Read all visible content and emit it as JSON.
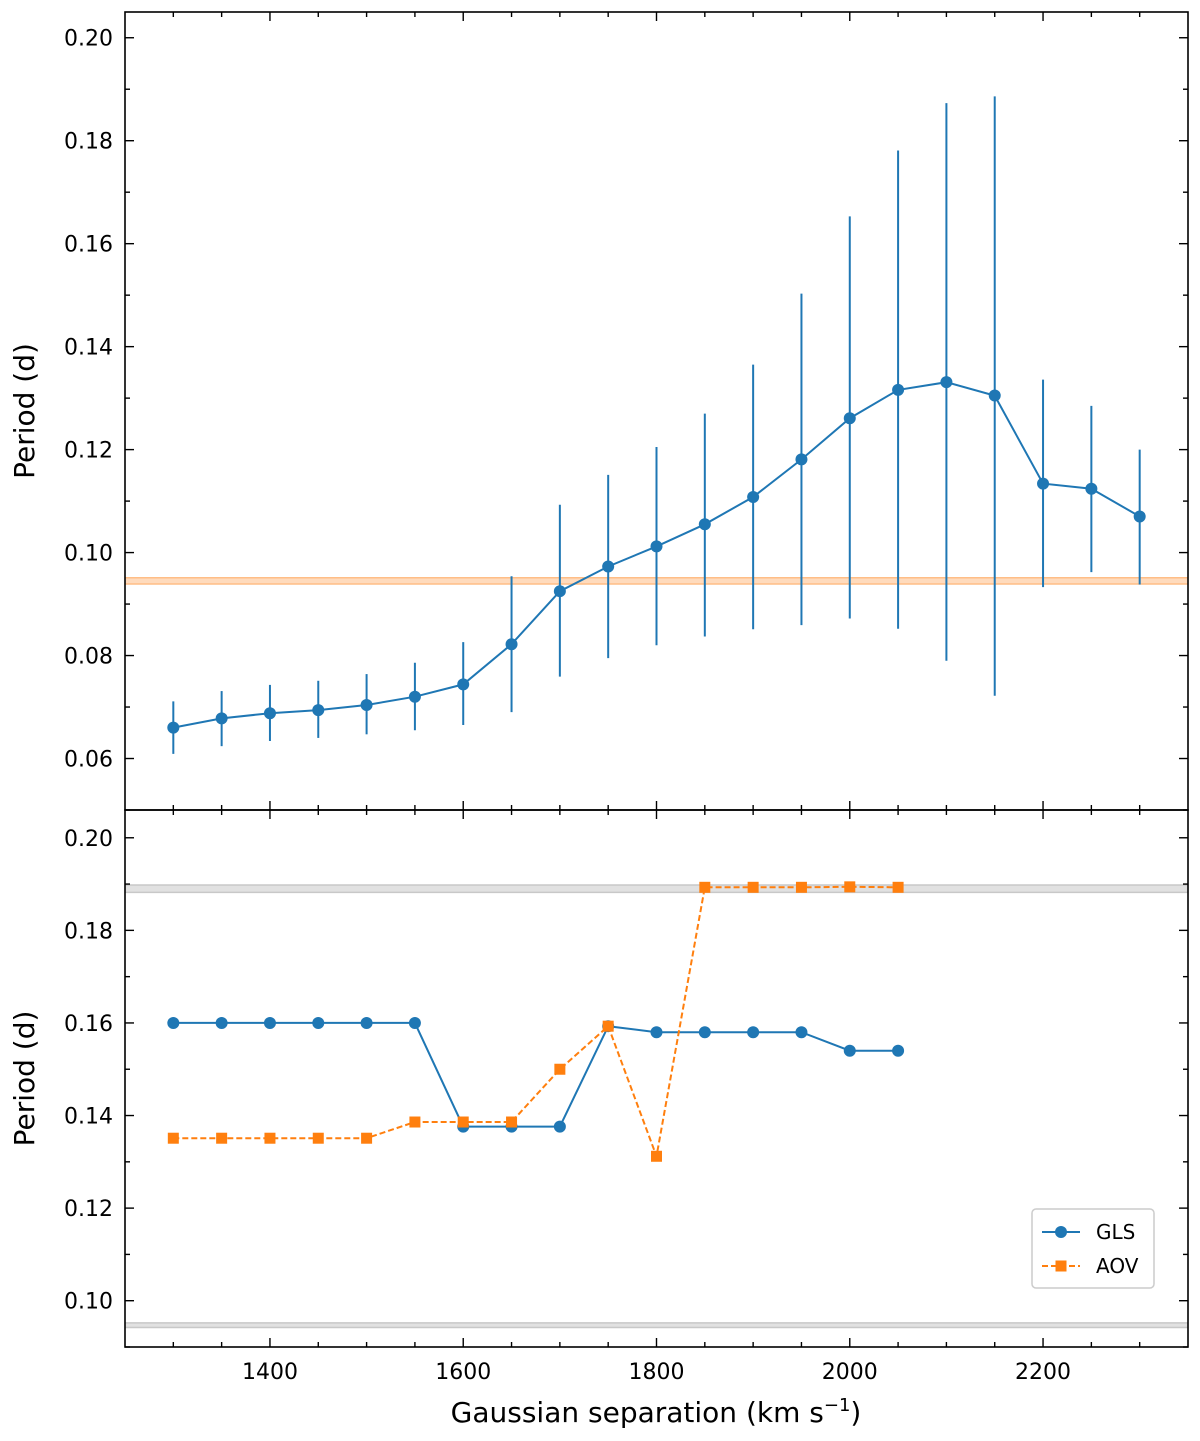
{
  "chart_data": [
    {
      "type": "line",
      "panel": "top",
      "xlabel": "Gaussian separation (km s",
      "xlabel_sup": "−1",
      "xlabel_end": ")",
      "ylabel": "Period (d)",
      "xlim": [
        1250,
        2350
      ],
      "ylim": [
        0.05,
        0.205
      ],
      "xticks": [
        1400,
        1600,
        1800,
        2000,
        2200
      ],
      "xtick_labels": [
        "1400",
        "1600",
        "1800",
        "2000",
        "2200"
      ],
      "yticks": [
        0.06,
        0.08,
        0.1,
        0.12,
        0.14,
        0.16,
        0.18,
        0.2
      ],
      "ytick_labels": [
        "0.06",
        "0.08",
        "0.10",
        "0.12",
        "0.14",
        "0.16",
        "0.18",
        "0.20"
      ],
      "hband": {
        "y": 0.0945,
        "halfwidth": 0.0006,
        "color": "#ffbe86"
      },
      "series": [
        {
          "name": "GLS",
          "color": "#1f77b4",
          "marker": "circle",
          "x": [
            1300,
            1350,
            1400,
            1450,
            1500,
            1550,
            1600,
            1650,
            1700,
            1750,
            1800,
            1850,
            1900,
            1950,
            2000,
            2050,
            2100,
            2150,
            2200,
            2250,
            2300
          ],
          "y": [
            0.066,
            0.0678,
            0.0688,
            0.0694,
            0.0704,
            0.072,
            0.0744,
            0.0822,
            0.0925,
            0.0973,
            0.1012,
            0.1055,
            0.1108,
            0.1181,
            0.1261,
            0.1316,
            0.1331,
            0.1305,
            0.1134,
            0.1124,
            0.107
          ],
          "err_low": [
            0.0609,
            0.0624,
            0.0634,
            0.064,
            0.0647,
            0.0655,
            0.0665,
            0.069,
            0.0759,
            0.0795,
            0.082,
            0.0837,
            0.0851,
            0.0859,
            0.0872,
            0.0852,
            0.079,
            0.0722,
            0.0933,
            0.0962,
            0.0938
          ],
          "err_high": [
            0.0711,
            0.0731,
            0.0743,
            0.0751,
            0.0764,
            0.0786,
            0.0826,
            0.0954,
            0.1093,
            0.1151,
            0.1205,
            0.127,
            0.1365,
            0.1503,
            0.1653,
            0.1781,
            0.1873,
            0.1886,
            0.1336,
            0.1285,
            0.12
          ]
        }
      ]
    },
    {
      "type": "line",
      "panel": "bottom",
      "xlabel": "Gaussian separation (km s",
      "xlabel_sup": "−1",
      "xlabel_end": ")",
      "ylabel": "Period (d)",
      "xlim": [
        1250,
        2350
      ],
      "ylim": [
        0.09,
        0.206
      ],
      "xticks": [
        1400,
        1600,
        1800,
        2000,
        2200
      ],
      "xtick_labels": [
        "1400",
        "1600",
        "1800",
        "2000",
        "2200"
      ],
      "yticks": [
        0.1,
        0.12,
        0.14,
        0.16,
        0.18,
        0.2
      ],
      "ytick_labels": [
        "0.10",
        "0.12",
        "0.14",
        "0.16",
        "0.18",
        "0.20"
      ],
      "hbands": [
        {
          "y": 0.189,
          "halfwidth": 0.0008,
          "color": "#c8c8c8"
        },
        {
          "y": 0.0947,
          "halfwidth": 0.0005,
          "color": "#c8c8c8"
        }
      ],
      "series": [
        {
          "name": "GLS",
          "color": "#1f77b4",
          "marker": "circle",
          "linestyle": "solid",
          "x": [
            1300,
            1350,
            1400,
            1450,
            1500,
            1550,
            1600,
            1650,
            1700,
            1750,
            1800,
            1850,
            1900,
            1950,
            2000,
            2050
          ],
          "y": [
            0.16,
            0.16,
            0.16,
            0.16,
            0.16,
            0.16,
            0.1376,
            0.1376,
            0.1376,
            0.1593,
            0.158,
            0.158,
            0.158,
            0.158,
            0.154,
            0.154
          ]
        },
        {
          "name": "AOV",
          "color": "#ff7f0e",
          "marker": "square",
          "linestyle": "dashed",
          "x": [
            1300,
            1350,
            1400,
            1450,
            1500,
            1550,
            1600,
            1650,
            1700,
            1750,
            1800,
            1850,
            1900,
            1950,
            2000,
            2050
          ],
          "y": [
            0.1351,
            0.1351,
            0.1351,
            0.1351,
            0.1351,
            0.1386,
            0.1386,
            0.1386,
            0.15,
            0.1593,
            0.1312,
            0.1893,
            0.1893,
            0.1893,
            0.1894,
            0.1893
          ]
        }
      ],
      "legend": {
        "position": "bottom-right",
        "entries": [
          "GLS",
          "AOV"
        ]
      }
    }
  ]
}
